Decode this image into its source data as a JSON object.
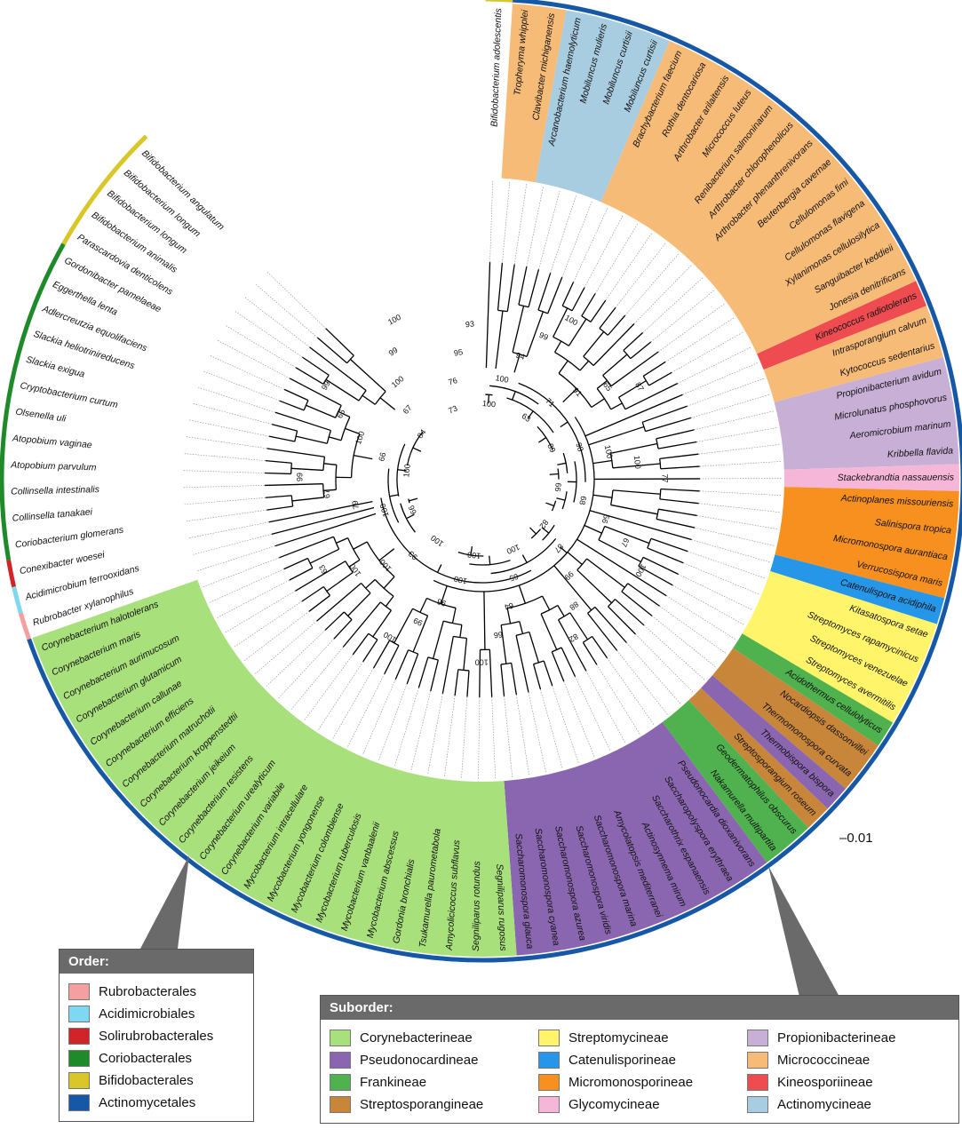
{
  "scale_bar": "–0.01",
  "order_legend": {
    "title": "Order:",
    "items": [
      {
        "label": "Rubrobacterales",
        "color": "#f4a0a0"
      },
      {
        "label": "Acidimicrobiales",
        "color": "#7fd8f2"
      },
      {
        "label": "Solirubrobacterales",
        "color": "#d0232a"
      },
      {
        "label": "Coriobacterales",
        "color": "#1f8a2a"
      },
      {
        "label": "Bifidobacterales",
        "color": "#d9c72a"
      },
      {
        "label": "Actinomycetales",
        "color": "#1658a6"
      }
    ]
  },
  "suborder_legend": {
    "title": "Suborder:",
    "items": [
      {
        "label": "Corynebacterineae",
        "color": "#a8e07c"
      },
      {
        "label": "Streptomycineae",
        "color": "#fff46a"
      },
      {
        "label": "Propionibacterineae",
        "color": "#c8afd6"
      },
      {
        "label": "Pseudonocardineae",
        "color": "#8b66b0"
      },
      {
        "label": "Catenulisporineae",
        "color": "#2596e8"
      },
      {
        "label": "Micrococcineae",
        "color": "#f7bb78"
      },
      {
        "label": "Frankineae",
        "color": "#4fb24f"
      },
      {
        "label": "Micromonosporineae",
        "color": "#f7901e"
      },
      {
        "label": "Kineosporiineae",
        "color": "#ee4c50"
      },
      {
        "label": "Streptosporangineae",
        "color": "#c8863b"
      },
      {
        "label": "Glycomycineae",
        "color": "#f6b6d8"
      },
      {
        "label": "Actinomycineae",
        "color": "#a8cce0"
      }
    ]
  },
  "taxa": [
    {
      "name": "Bifidobacterium adolescentis",
      "suborder": null,
      "order": "Bifidobacterales"
    },
    {
      "name": "Tropheryma whipplei",
      "suborder": "Micrococcineae",
      "order": "Actinomycetales"
    },
    {
      "name": "Clavibacter michiganensis",
      "suborder": "Micrococcineae",
      "order": "Actinomycetales"
    },
    {
      "name": "Arcanobacterium haemolyticum",
      "suborder": "Actinomycineae",
      "order": "Actinomycetales"
    },
    {
      "name": "Mobiluncus mulieris",
      "suborder": "Actinomycineae",
      "order": "Actinomycetales"
    },
    {
      "name": "Mobiluncus curtisii",
      "suborder": "Actinomycineae",
      "order": "Actinomycetales"
    },
    {
      "name": "Mobiluncus curtisii",
      "suborder": "Actinomycineae",
      "order": "Actinomycetales"
    },
    {
      "name": "Brachybacterium faecium",
      "suborder": "Micrococcineae",
      "order": "Actinomycetales"
    },
    {
      "name": "Rothia dentocariosa",
      "suborder": "Micrococcineae",
      "order": "Actinomycetales"
    },
    {
      "name": "Arthrobacter arilaitensis",
      "suborder": "Micrococcineae",
      "order": "Actinomycetales"
    },
    {
      "name": "Micrococcus luteus",
      "suborder": "Micrococcineae",
      "order": "Actinomycetales"
    },
    {
      "name": "Renibacterium salmoninarum",
      "suborder": "Micrococcineae",
      "order": "Actinomycetales"
    },
    {
      "name": "Arthrobacter chlorophenolicus",
      "suborder": "Micrococcineae",
      "order": "Actinomycetales"
    },
    {
      "name": "Arthrobacter phenanthrenivorans",
      "suborder": "Micrococcineae",
      "order": "Actinomycetales"
    },
    {
      "name": "Beutenbergia cavernae",
      "suborder": "Micrococcineae",
      "order": "Actinomycetales"
    },
    {
      "name": "Cellulomonas fimi",
      "suborder": "Micrococcineae",
      "order": "Actinomycetales"
    },
    {
      "name": "Cellulomonas flavigena",
      "suborder": "Micrococcineae",
      "order": "Actinomycetales"
    },
    {
      "name": "Xylanimonas cellulosilytica",
      "suborder": "Micrococcineae",
      "order": "Actinomycetales"
    },
    {
      "name": "Sanguibacter keddieii",
      "suborder": "Micrococcineae",
      "order": "Actinomycetales"
    },
    {
      "name": "Jonesia denitrificans",
      "suborder": "Micrococcineae",
      "order": "Actinomycetales"
    },
    {
      "name": "Kineococcus radiotolerans",
      "suborder": "Kineosporiineae",
      "order": "Actinomycetales"
    },
    {
      "name": "Intrasporangium calvum",
      "suborder": "Micrococcineae",
      "order": "Actinomycetales"
    },
    {
      "name": "Kytococcus sedentarius",
      "suborder": "Micrococcineae",
      "order": "Actinomycetales"
    },
    {
      "name": "Propionibacterium avidum",
      "suborder": "Propionibacterineae",
      "order": "Actinomycetales"
    },
    {
      "name": "Microlunatus phosphovorus",
      "suborder": "Propionibacterineae",
      "order": "Actinomycetales"
    },
    {
      "name": "Aeromicrobium marinum",
      "suborder": "Propionibacterineae",
      "order": "Actinomycetales"
    },
    {
      "name": "Kribbella flavida",
      "suborder": "Propionibacterineae",
      "order": "Actinomycetales"
    },
    {
      "name": "Stackebrandtia nassauensis",
      "suborder": "Glycomycineae",
      "order": "Actinomycetales"
    },
    {
      "name": "Actinoplanes missouriensis",
      "suborder": "Micromonosporineae",
      "order": "Actinomycetales"
    },
    {
      "name": "Salinispora tropica",
      "suborder": "Micromonosporineae",
      "order": "Actinomycetales"
    },
    {
      "name": "Micromonospora aurantiaca",
      "suborder": "Micromonosporineae",
      "order": "Actinomycetales"
    },
    {
      "name": "Verrucosispora maris",
      "suborder": "Micromonosporineae",
      "order": "Actinomycetales"
    },
    {
      "name": "Catenulispora acidiphila",
      "suborder": "Catenulisporineae",
      "order": "Actinomycetales"
    },
    {
      "name": "Kitasatospora setae",
      "suborder": "Streptomycineae",
      "order": "Actinomycetales"
    },
    {
      "name": "Streptomyces rapamycinicus",
      "suborder": "Streptomycineae",
      "order": "Actinomycetales"
    },
    {
      "name": "Streptomyces venezuelae",
      "suborder": "Streptomycineae",
      "order": "Actinomycetales"
    },
    {
      "name": "Streptomyces avermitilis",
      "suborder": "Streptomycineae",
      "order": "Actinomycetales"
    },
    {
      "name": "Acidothermus cellulolyticus",
      "suborder": "Frankineae",
      "order": "Actinomycetales"
    },
    {
      "name": "Nocardiopsis dassonvillei",
      "suborder": "Streptosporangineae",
      "order": "Actinomycetales"
    },
    {
      "name": "Thermomonospora curvata",
      "suborder": "Streptosporangineae",
      "order": "Actinomycetales"
    },
    {
      "name": "Thermobispora bispora",
      "suborder": "Pseudonocardineae",
      "order": "Actinomycetales"
    },
    {
      "name": "Streptosporangium roseum",
      "suborder": "Streptosporangineae",
      "order": "Actinomycetales"
    },
    {
      "name": "Geodermatophilus obscurus",
      "suborder": "Frankineae",
      "order": "Actinomycetales"
    },
    {
      "name": "Nakamurella multipartita",
      "suborder": "Frankineae",
      "order": "Actinomycetales"
    },
    {
      "name": "Pseudonocardia dioxanivorans",
      "suborder": "Pseudonocardineae",
      "order": "Actinomycetales"
    },
    {
      "name": "Saccharopolyspora erythraea",
      "suborder": "Pseudonocardineae",
      "order": "Actinomycetales"
    },
    {
      "name": "Saccharothrix espanaensis",
      "suborder": "Pseudonocardineae",
      "order": "Actinomycetales"
    },
    {
      "name": "Actinosynnema mirum",
      "suborder": "Pseudonocardineae",
      "order": "Actinomycetales"
    },
    {
      "name": "Amycolatopsis mediterranei",
      "suborder": "Pseudonocardineae",
      "order": "Actinomycetales"
    },
    {
      "name": "Saccharomonospora marina",
      "suborder": "Pseudonocardineae",
      "order": "Actinomycetales"
    },
    {
      "name": "Saccharomonospora viridis",
      "suborder": "Pseudonocardineae",
      "order": "Actinomycetales"
    },
    {
      "name": "Saccharomonospora azurea",
      "suborder": "Pseudonocardineae",
      "order": "Actinomycetales"
    },
    {
      "name": "Saccharomonospora cyanea",
      "suborder": "Pseudonocardineae",
      "order": "Actinomycetales"
    },
    {
      "name": "Saccharomonospora glauca",
      "suborder": "Pseudonocardineae",
      "order": "Actinomycetales"
    },
    {
      "name": "Segniliparus rugosus",
      "suborder": "Corynebacterineae",
      "order": "Actinomycetales"
    },
    {
      "name": "Segniliparus rotundus",
      "suborder": "Corynebacterineae",
      "order": "Actinomycetales"
    },
    {
      "name": "Amycolicicoccus subflavus",
      "suborder": "Corynebacterineae",
      "order": "Actinomycetales"
    },
    {
      "name": "Tsukamurella paurometabola",
      "suborder": "Corynebacterineae",
      "order": "Actinomycetales"
    },
    {
      "name": "Gordonia bronchialis",
      "suborder": "Corynebacterineae",
      "order": "Actinomycetales"
    },
    {
      "name": "Mycobacterium abscessus",
      "suborder": "Corynebacterineae",
      "order": "Actinomycetales"
    },
    {
      "name": "Mycobacterium vanbaalenii",
      "suborder": "Corynebacterineae",
      "order": "Actinomycetales"
    },
    {
      "name": "Mycobacterium tuberculosis",
      "suborder": "Corynebacterineae",
      "order": "Actinomycetales"
    },
    {
      "name": "Mycobacterium colombiense",
      "suborder": "Corynebacterineae",
      "order": "Actinomycetales"
    },
    {
      "name": "Mycobacterium yongonense",
      "suborder": "Corynebacterineae",
      "order": "Actinomycetales"
    },
    {
      "name": "Mycobacterium intracellulare",
      "suborder": "Corynebacterineae",
      "order": "Actinomycetales"
    },
    {
      "name": "Corynebacterium variabile",
      "suborder": "Corynebacterineae",
      "order": "Actinomycetales"
    },
    {
      "name": "Corynebacterium urealyticum",
      "suborder": "Corynebacterineae",
      "order": "Actinomycetales"
    },
    {
      "name": "Corynebacterium resistens",
      "suborder": "Corynebacterineae",
      "order": "Actinomycetales"
    },
    {
      "name": "Corynebacterium jeikeium",
      "suborder": "Corynebacterineae",
      "order": "Actinomycetales"
    },
    {
      "name": "Corynebacterium kroppenstedtii",
      "suborder": "Corynebacterineae",
      "order": "Actinomycetales"
    },
    {
      "name": "Corynebacterium matruchotii",
      "suborder": "Corynebacterineae",
      "order": "Actinomycetales"
    },
    {
      "name": "Corynebacterium efficiens",
      "suborder": "Corynebacterineae",
      "order": "Actinomycetales"
    },
    {
      "name": "Corynebacterium callunae",
      "suborder": "Corynebacterineae",
      "order": "Actinomycetales"
    },
    {
      "name": "Corynebacterium glutamicum",
      "suborder": "Corynebacterineae",
      "order": "Actinomycetales"
    },
    {
      "name": "Corynebacterium aurimucosum",
      "suborder": "Corynebacterineae",
      "order": "Actinomycetales"
    },
    {
      "name": "Corynebacterium maris",
      "suborder": "Corynebacterineae",
      "order": "Actinomycetales"
    },
    {
      "name": "Corynebacterium halotolerans",
      "suborder": "Corynebacterineae",
      "order": "Actinomycetales"
    },
    {
      "name": "Rubrobacter xylanophilus",
      "suborder": null,
      "order": "Rubrobacterales"
    },
    {
      "name": "Acidimicrobium ferrooxidans",
      "suborder": null,
      "order": "Acidimicrobiales"
    },
    {
      "name": "Conexibacter woesei",
      "suborder": null,
      "order": "Solirubrobacterales"
    },
    {
      "name": "Coriobacterium glomerans",
      "suborder": null,
      "order": "Coriobacterales"
    },
    {
      "name": "Collinsella tanakaei",
      "suborder": null,
      "order": "Coriobacterales"
    },
    {
      "name": "Collinsella intestinalis",
      "suborder": null,
      "order": "Coriobacterales"
    },
    {
      "name": "Atopobium parvulum",
      "suborder": null,
      "order": "Coriobacterales"
    },
    {
      "name": "Atopobium vaginae",
      "suborder": null,
      "order": "Coriobacterales"
    },
    {
      "name": "Olsenella uli",
      "suborder": null,
      "order": "Coriobacterales"
    },
    {
      "name": "Cryptobacterium curtum",
      "suborder": null,
      "order": "Coriobacterales"
    },
    {
      "name": "Slackia exigua",
      "suborder": null,
      "order": "Coriobacterales"
    },
    {
      "name": "Slackia heliotrinireducens",
      "suborder": null,
      "order": "Coriobacterales"
    },
    {
      "name": "Adlercreutzia equolifaciens",
      "suborder": null,
      "order": "Coriobacterales"
    },
    {
      "name": "Eggerthella lenta",
      "suborder": null,
      "order": "Coriobacterales"
    },
    {
      "name": "Gordonibacter pamelaeae",
      "suborder": null,
      "order": "Coriobacterales"
    },
    {
      "name": "Parascardovia denticolens",
      "suborder": null,
      "order": "Bifidobacterales"
    },
    {
      "name": "Bifidobacterium animalis",
      "suborder": null,
      "order": "Bifidobacterales"
    },
    {
      "name": "Bifidobacterium longum",
      "suborder": null,
      "order": "Bifidobacterales"
    },
    {
      "name": "Bifidobacterium longum",
      "suborder": null,
      "order": "Bifidobacterales"
    },
    {
      "name": "Bifidobacterium angulatum",
      "suborder": null,
      "order": "Bifidobacterales"
    }
  ],
  "bootstrap_values": [
    "100",
    "100",
    "94",
    "99",
    "100",
    "63",
    "71",
    "91",
    "65",
    "87",
    "89",
    "98",
    "100",
    "100",
    "77",
    "66",
    "68",
    "56",
    "67",
    "100",
    "82",
    "87",
    "99",
    "88",
    "82",
    "100",
    "65",
    "64",
    "66",
    "100",
    "100",
    "100",
    "96",
    "99",
    "100",
    "100",
    "93",
    "100",
    "100",
    "63",
    "66",
    "100",
    "79",
    "67",
    "99",
    "100",
    "66",
    "100",
    "66",
    "99",
    "84",
    "67",
    "100",
    "99",
    "100",
    "73",
    "76",
    "95",
    "93"
  ]
}
